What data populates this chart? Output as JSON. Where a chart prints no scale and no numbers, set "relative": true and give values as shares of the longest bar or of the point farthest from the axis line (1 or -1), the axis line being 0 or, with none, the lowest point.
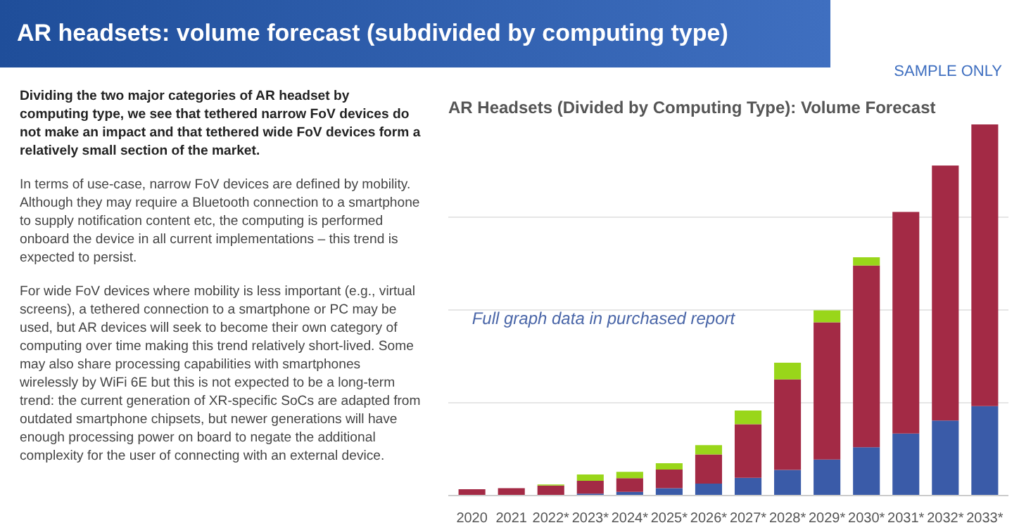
{
  "chart_data": {
    "type": "bar",
    "title": "AR headsets: volume forecast (subdivided by computing type)",
    "subtitle": "AR Headsets (Divided by Computing Type): Volume Forecast",
    "categories": [
      "2020",
      "2021",
      "2022*",
      "2023*",
      "2024*",
      "2025*",
      "2026*",
      "2027*",
      "2028*",
      "2029*",
      "2030*",
      "2031*",
      "2032*",
      "2033*"
    ],
    "stacked": true,
    "relative": true,
    "grid": "y",
    "series": [
      {
        "color": "#3a5ba8",
        "values": [
          0,
          0,
          0,
          0.005,
          0.01,
          0.02,
          0.032,
          0.048,
          0.069,
          0.097,
          0.13,
          0.167,
          0.202,
          0.241
        ]
      },
      {
        "color": "#a32a45",
        "values": [
          0.017,
          0.02,
          0.027,
          0.035,
          0.037,
          0.05,
          0.079,
          0.144,
          0.244,
          0.37,
          0.49,
          0.597,
          0.687,
          0.759
        ]
      },
      {
        "color": "#99d61a",
        "values": [
          0,
          0,
          0.003,
          0.017,
          0.017,
          0.017,
          0.025,
          0.037,
          0.045,
          0.032,
          0.022,
          0,
          0,
          0
        ]
      }
    ],
    "annotations": [
      "Dividing the two major categories of AR headset by computing type, we see that tethered narrow FoV devices do not make an impact and that tethered wide FoV devices form a relatively small section of the market.",
      "In terms of use-case, narrow FoV devices are defined by mobility. Although they may require a Bluetooth connection to a smartphone to supply notification content etc, the computing is performed onboard the device in all current implementations – this trend is expected to persist.",
      "For wide FoV devices where mobility is less important (e.g., virtual screens), a tethered connection to a smartphone or PC may be used, but AR devices will seek to become their own category of computing over time making this trend relatively short-lived. Some may also share processing capabilities with smartphones wirelessly by WiFi 6E but this is not expected to be a long-term trend: the current generation of XR-specific SoCs are adapted from outdated smartphone chipsets, but newer generations will have enough processing power on board to negate the additional complexity for the user of connecting with an external device.",
      "Full graph data in purchased report",
      "SAMPLE ONLY"
    ]
  }
}
